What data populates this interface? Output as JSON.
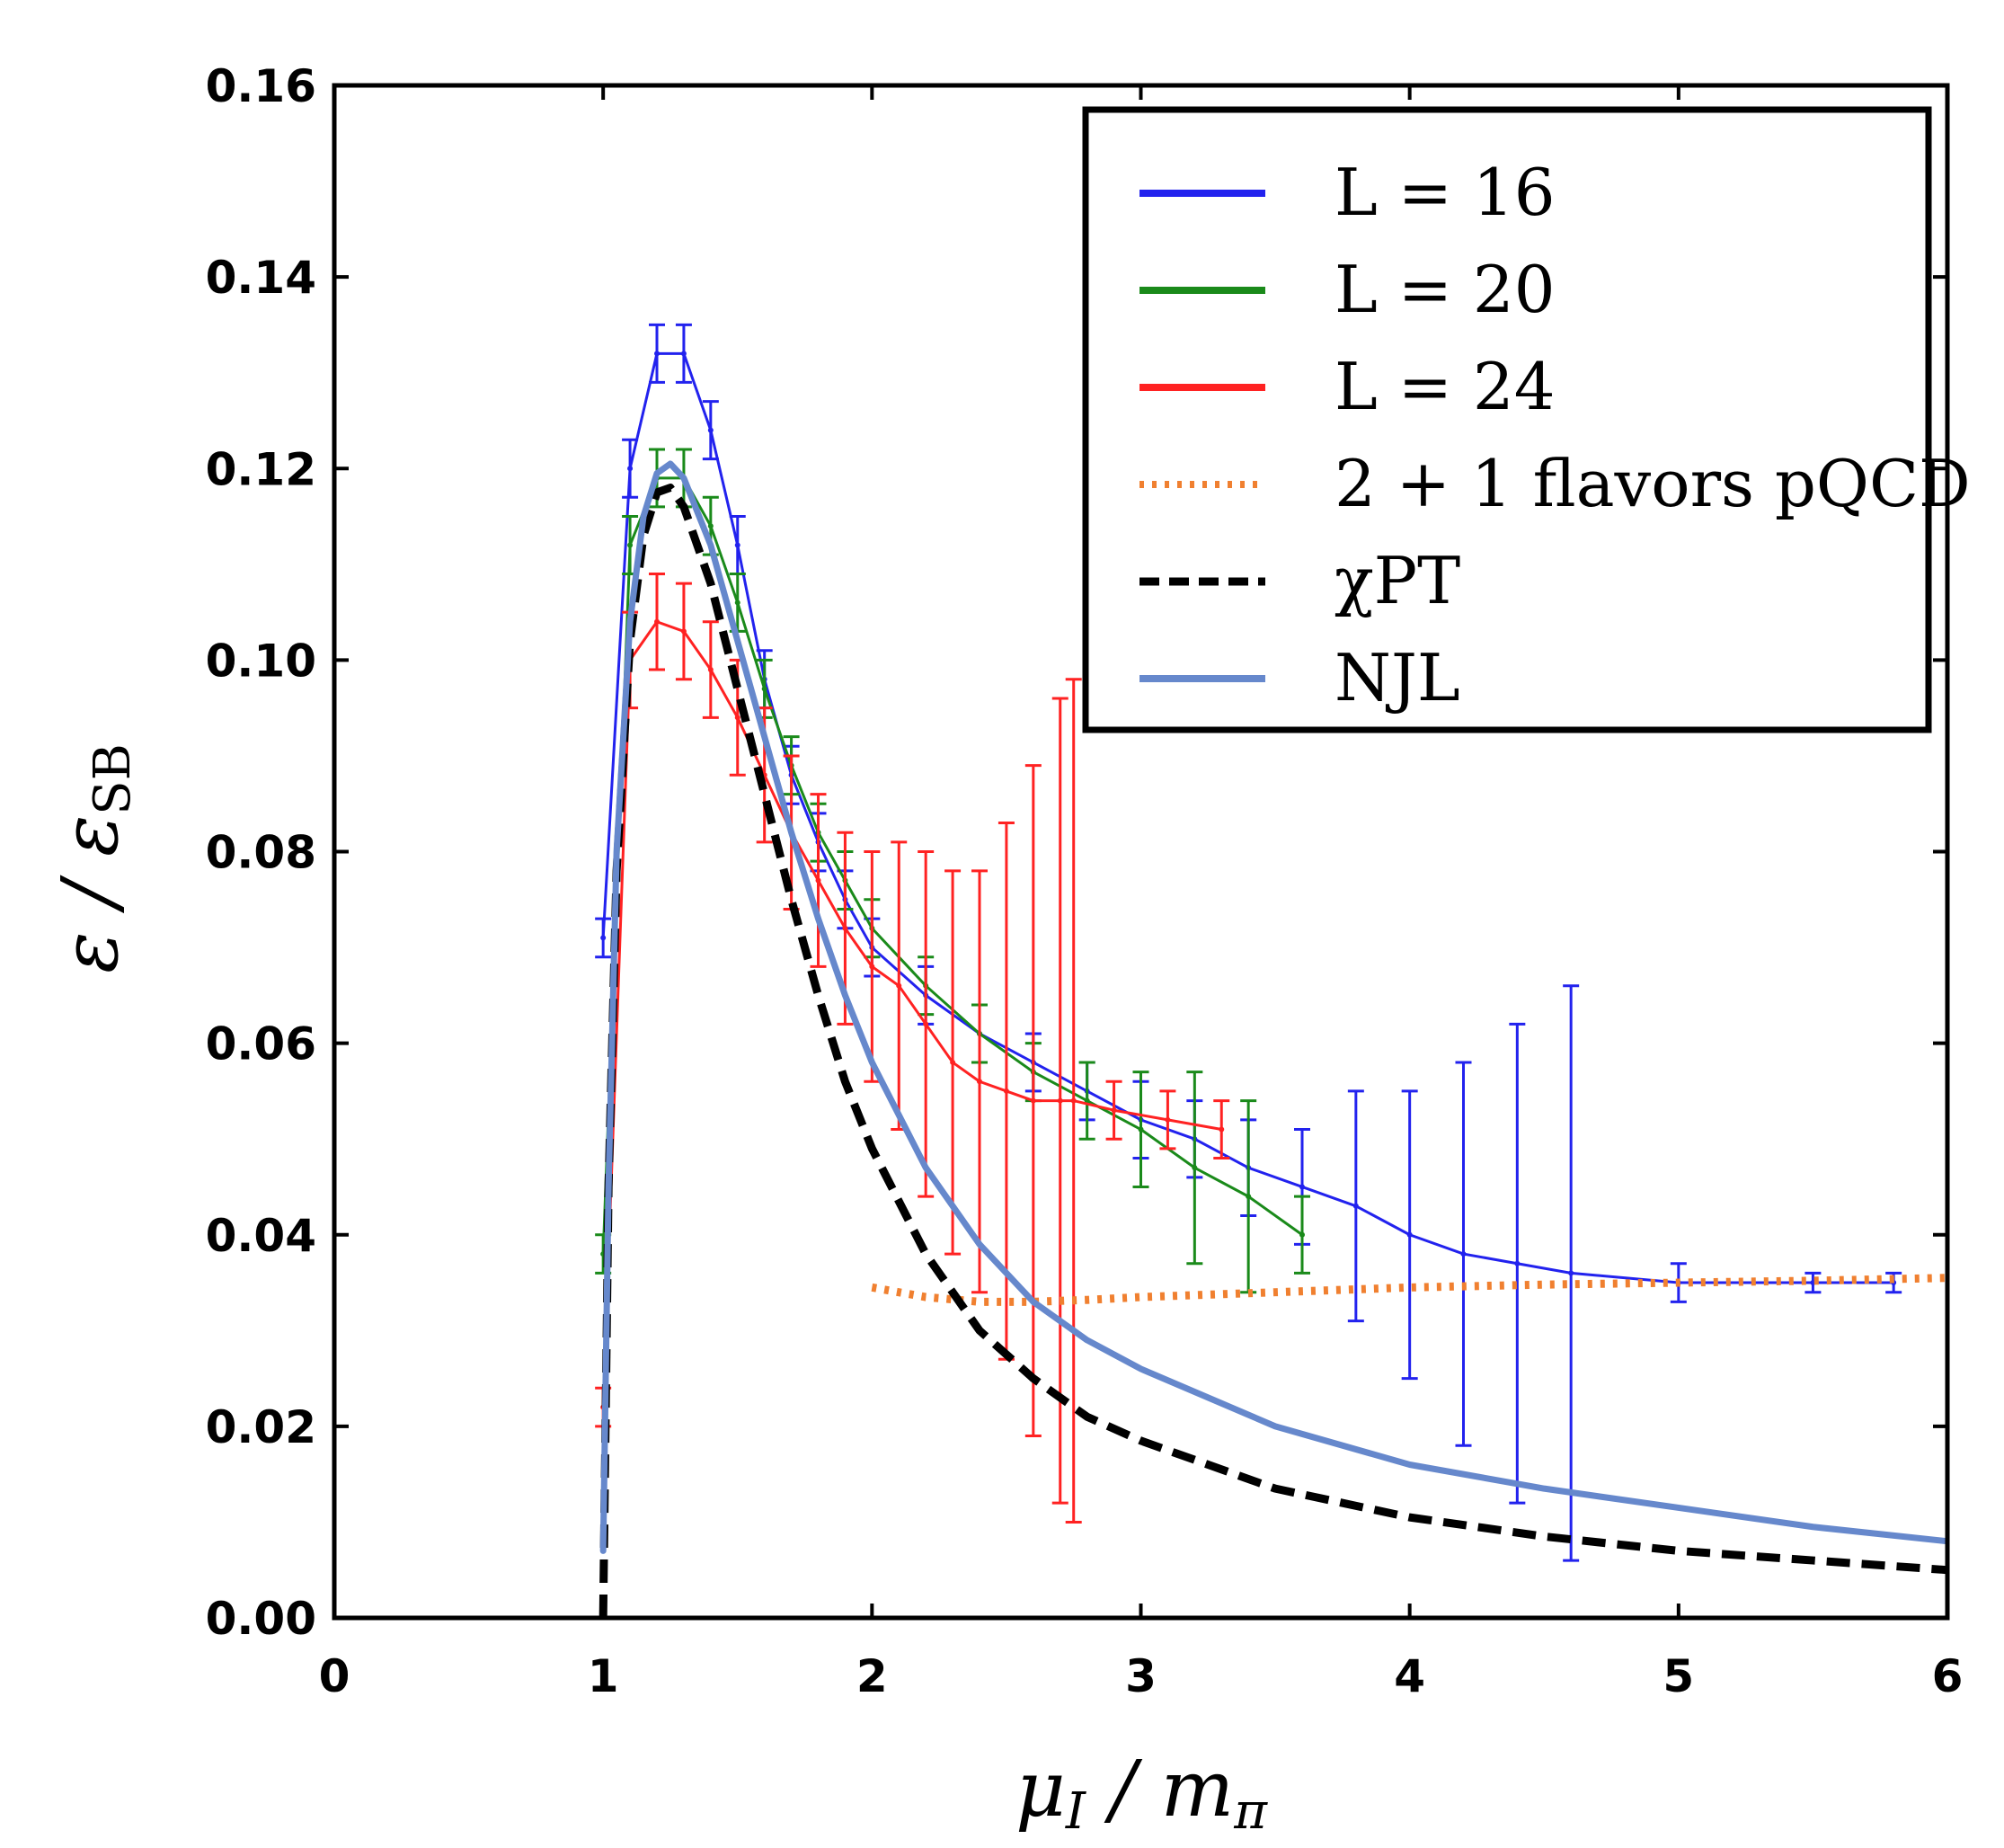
{
  "chart_data": {
    "type": "line",
    "title": "",
    "xlabel": "μ_I / m_π",
    "ylabel": "ε / ε_SB",
    "xlim": [
      0,
      6
    ],
    "ylim": [
      0,
      0.16
    ],
    "x_ticks": [
      "0",
      "1",
      "2",
      "3",
      "4",
      "5",
      "6"
    ],
    "y_ticks": [
      "0.00",
      "0.02",
      "0.04",
      "0.06",
      "0.08",
      "0.10",
      "0.12",
      "0.14",
      "0.16"
    ],
    "legend_position": "top-right",
    "series": [
      {
        "name": "L = 16",
        "color": "#2222ee",
        "style": "solid-errorbars",
        "x": [
          1.0,
          1.1,
          1.2,
          1.3,
          1.4,
          1.5,
          1.6,
          1.7,
          1.8,
          1.9,
          2.0,
          2.2,
          2.4,
          2.6,
          2.8,
          3.0,
          3.2,
          3.4,
          3.6,
          3.8,
          4.0,
          4.2,
          4.4,
          4.6,
          5.0,
          5.5,
          5.8
        ],
        "y": [
          0.071,
          0.12,
          0.132,
          0.132,
          0.124,
          0.112,
          0.098,
          0.088,
          0.081,
          0.075,
          0.07,
          0.065,
          0.061,
          0.058,
          0.055,
          0.052,
          0.05,
          0.047,
          0.045,
          0.043,
          0.04,
          0.038,
          0.037,
          0.036,
          0.035,
          0.035,
          0.035
        ],
        "yerr": [
          0.002,
          0.003,
          0.003,
          0.003,
          0.003,
          0.003,
          0.003,
          0.003,
          0.003,
          0.003,
          0.003,
          0.003,
          0.003,
          0.003,
          0.003,
          0.004,
          0.004,
          0.005,
          0.006,
          0.012,
          0.015,
          0.02,
          0.025,
          0.03,
          0.002,
          0.001,
          0.001
        ]
      },
      {
        "name": "L = 20",
        "color": "#1a8a1a",
        "style": "solid-errorbars",
        "x": [
          1.0,
          1.1,
          1.2,
          1.3,
          1.4,
          1.5,
          1.6,
          1.7,
          1.8,
          1.9,
          2.0,
          2.2,
          2.4,
          2.6,
          2.8,
          3.0,
          3.2,
          3.4,
          3.6
        ],
        "y": [
          0.038,
          0.112,
          0.119,
          0.119,
          0.114,
          0.106,
          0.097,
          0.089,
          0.082,
          0.077,
          0.072,
          0.066,
          0.061,
          0.057,
          0.054,
          0.051,
          0.047,
          0.044,
          0.04
        ],
        "yerr": [
          0.002,
          0.003,
          0.003,
          0.003,
          0.003,
          0.003,
          0.003,
          0.003,
          0.003,
          0.003,
          0.003,
          0.003,
          0.003,
          0.003,
          0.004,
          0.006,
          0.01,
          0.01,
          0.004
        ]
      },
      {
        "name": "L = 24",
        "color": "#ff2222",
        "style": "solid-errorbars",
        "x": [
          1.0,
          1.1,
          1.2,
          1.3,
          1.4,
          1.5,
          1.6,
          1.7,
          1.8,
          1.9,
          2.0,
          2.1,
          2.2,
          2.3,
          2.4,
          2.5,
          2.6,
          2.7,
          2.75,
          2.9,
          3.1,
          3.3
        ],
        "y": [
          0.022,
          0.1,
          0.104,
          0.103,
          0.099,
          0.094,
          0.088,
          0.082,
          0.077,
          0.072,
          0.068,
          0.066,
          0.062,
          0.058,
          0.056,
          0.055,
          0.054,
          0.054,
          0.054,
          0.053,
          0.052,
          0.051
        ],
        "yerr": [
          0.002,
          0.005,
          0.005,
          0.005,
          0.005,
          0.006,
          0.007,
          0.008,
          0.009,
          0.01,
          0.012,
          0.015,
          0.018,
          0.02,
          0.022,
          0.028,
          0.035,
          0.042,
          0.044,
          0.003,
          0.003,
          0.003
        ]
      },
      {
        "name": "2 + 1 flavors pQCD",
        "color": "#f08030",
        "style": "dotted",
        "x": [
          2.0,
          2.2,
          2.4,
          2.6,
          2.8,
          3.0,
          3.5,
          4.0,
          4.5,
          5.0,
          5.5,
          6.0
        ],
        "y": [
          0.0345,
          0.0335,
          0.033,
          0.033,
          0.0332,
          0.0335,
          0.034,
          0.0345,
          0.0348,
          0.035,
          0.0352,
          0.0355
        ]
      },
      {
        "name": "χPT",
        "color": "#000000",
        "style": "dashed",
        "x": [
          1.0,
          1.02,
          1.05,
          1.1,
          1.15,
          1.2,
          1.25,
          1.3,
          1.4,
          1.5,
          1.6,
          1.7,
          1.8,
          1.9,
          2.0,
          2.2,
          2.4,
          2.6,
          2.8,
          3.0,
          3.5,
          4.0,
          4.5,
          5.0,
          5.5,
          6.0
        ],
        "y": [
          0.0,
          0.045,
          0.078,
          0.102,
          0.113,
          0.1175,
          0.118,
          0.116,
          0.108,
          0.097,
          0.086,
          0.075,
          0.065,
          0.056,
          0.049,
          0.038,
          0.03,
          0.025,
          0.021,
          0.0185,
          0.0135,
          0.0105,
          0.0085,
          0.007,
          0.006,
          0.005
        ]
      },
      {
        "name": "NJL",
        "color": "#6688cc",
        "style": "solid",
        "x": [
          1.0,
          1.02,
          1.05,
          1.1,
          1.15,
          1.2,
          1.25,
          1.3,
          1.4,
          1.5,
          1.6,
          1.7,
          1.8,
          1.9,
          2.0,
          2.2,
          2.4,
          2.6,
          2.8,
          3.0,
          3.5,
          4.0,
          4.5,
          5.0,
          5.5,
          6.0
        ],
        "y": [
          0.007,
          0.045,
          0.08,
          0.104,
          0.115,
          0.1195,
          0.1205,
          0.119,
          0.112,
          0.102,
          0.092,
          0.082,
          0.073,
          0.065,
          0.058,
          0.047,
          0.039,
          0.033,
          0.029,
          0.026,
          0.02,
          0.016,
          0.0135,
          0.0115,
          0.0095,
          0.008
        ]
      }
    ]
  }
}
